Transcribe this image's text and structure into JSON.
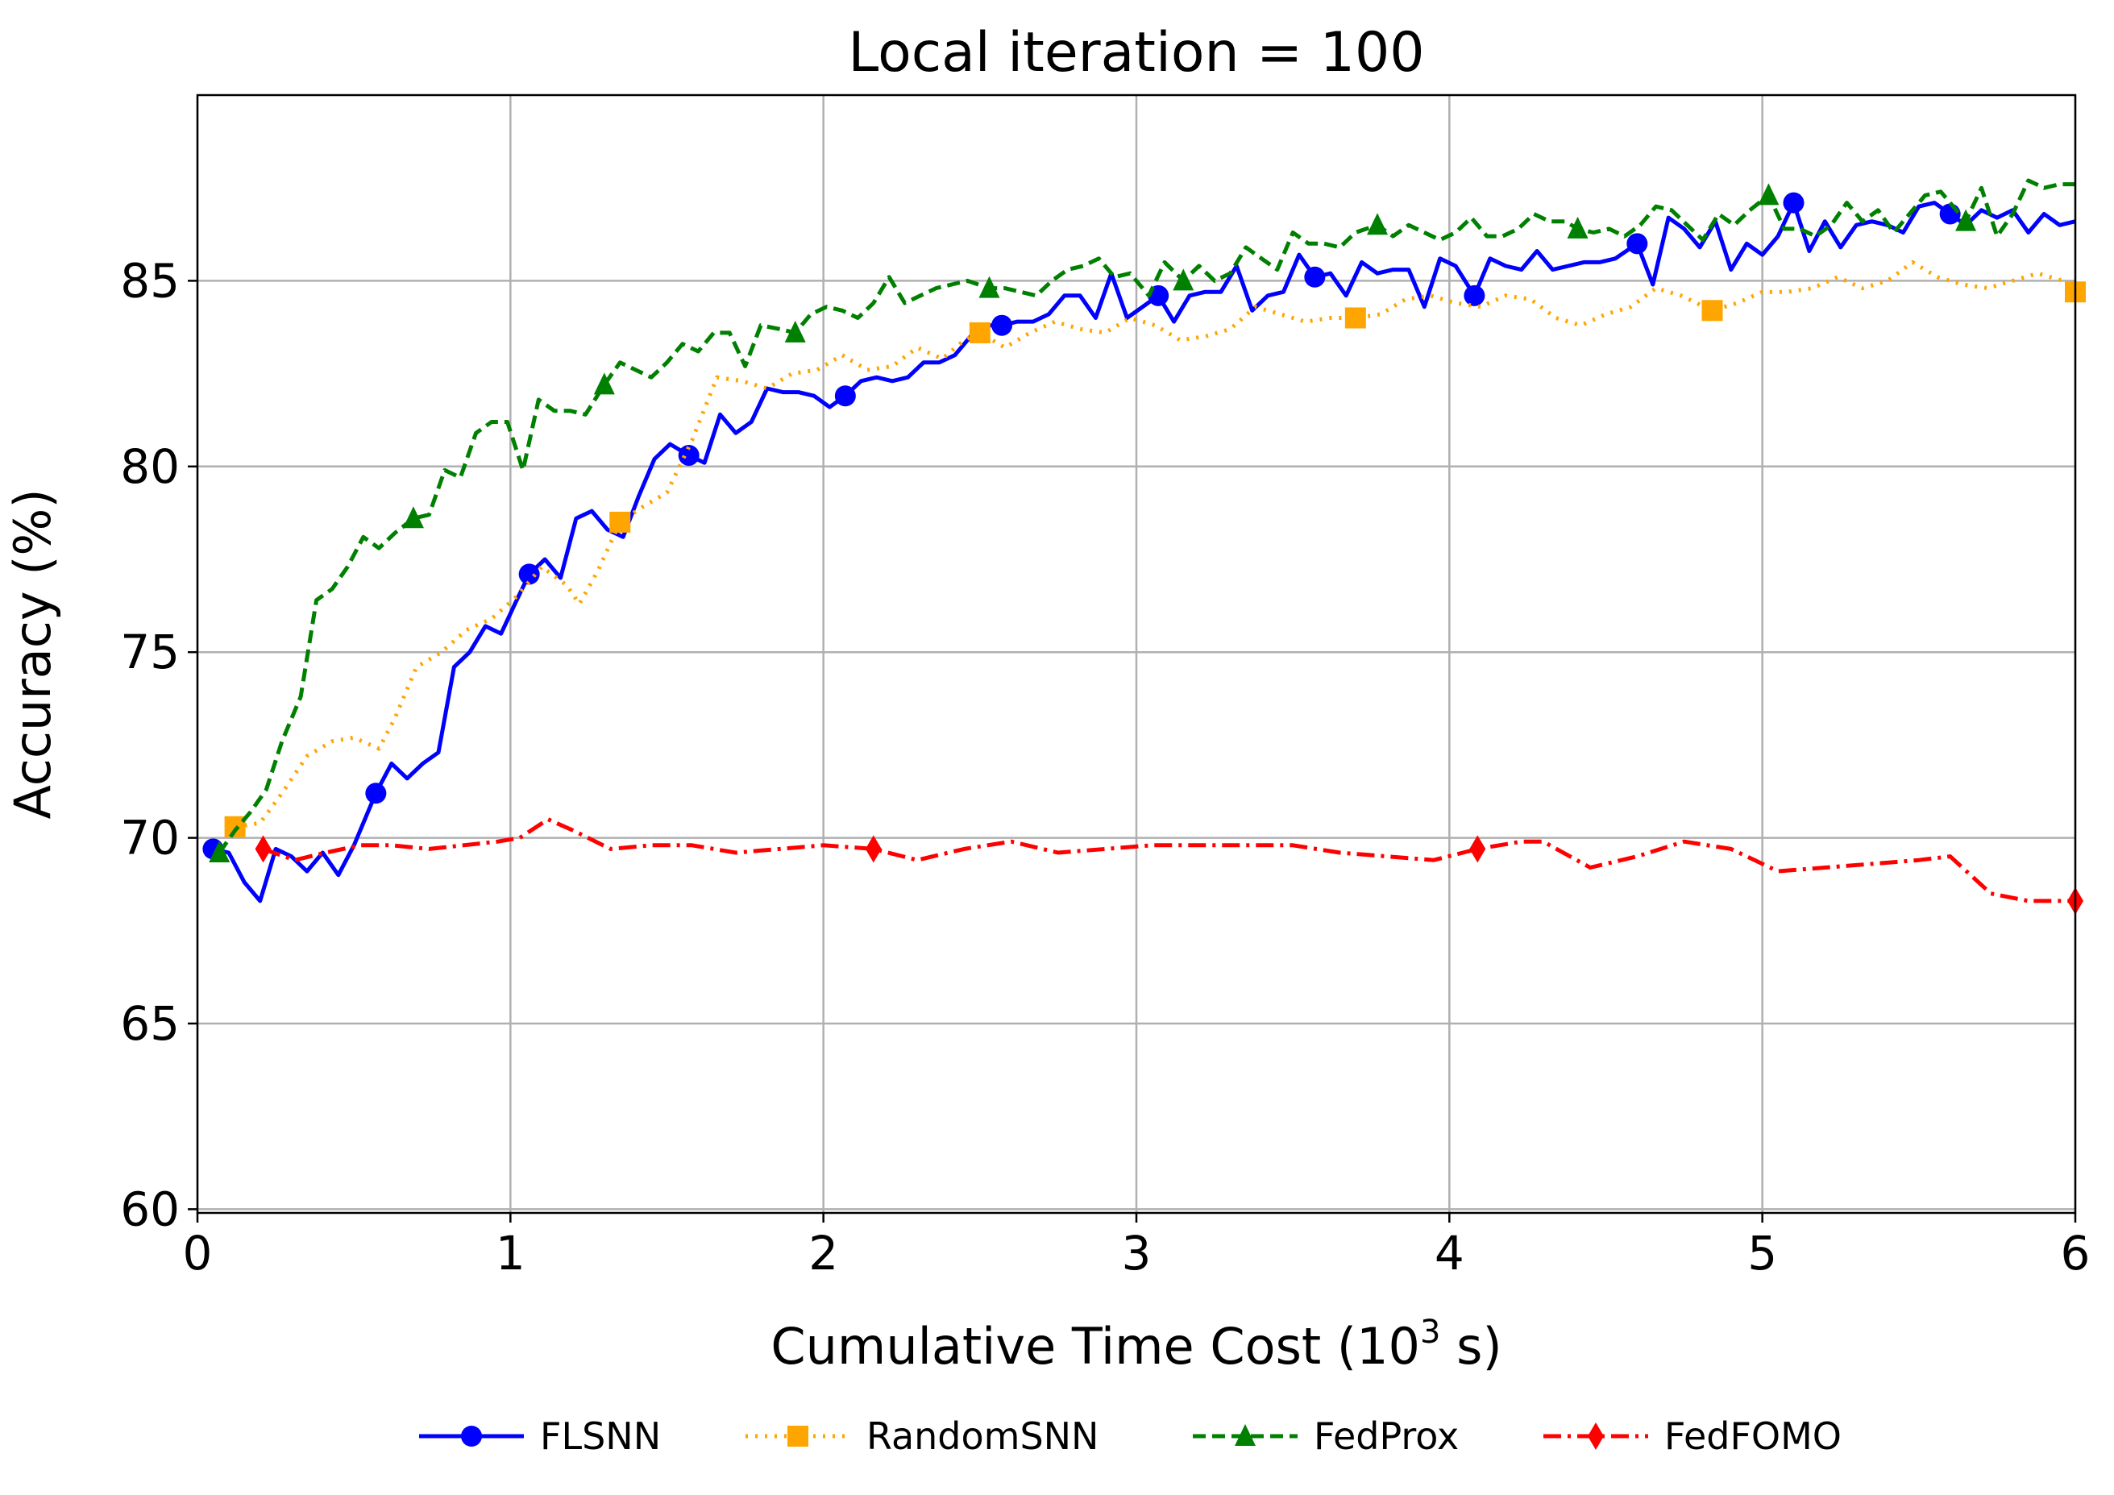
{
  "chart_data": {
    "type": "line",
    "title": "Local iteration = 100",
    "xlabel_main": "Cumulative Time Cost (10",
    "xlabel_sup": "3",
    "xlabel_tail": " s)",
    "ylabel": "Accuracy (%)",
    "xlim": [
      0,
      6
    ],
    "ylim": [
      59.9,
      90
    ],
    "xticks": [
      0,
      1,
      2,
      3,
      4,
      5,
      6
    ],
    "yticks": [
      60,
      65,
      70,
      75,
      80,
      85
    ],
    "grid": true,
    "legend_position": "bottom-center",
    "series": [
      {
        "name": "FLSNN",
        "color": "#0000ff",
        "marker": "circle",
        "dash": "solid",
        "markers_x": [
          0.05,
          0.57,
          1.06,
          1.57,
          2.07,
          2.57,
          3.07,
          3.57,
          4.08,
          4.6,
          5.1,
          5.6
        ],
        "x": [
          0.05,
          0.1,
          0.15,
          0.2,
          0.25,
          0.3,
          0.35,
          0.4,
          0.45,
          0.5,
          0.57,
          0.62,
          0.67,
          0.72,
          0.77,
          0.82,
          0.87,
          0.92,
          0.97,
          1.02,
          1.06,
          1.11,
          1.16,
          1.21,
          1.26,
          1.31,
          1.36,
          1.41,
          1.46,
          1.51,
          1.57,
          1.62,
          1.67,
          1.72,
          1.77,
          1.82,
          1.87,
          1.92,
          1.97,
          2.02,
          2.07,
          2.12,
          2.17,
          2.22,
          2.27,
          2.32,
          2.37,
          2.42,
          2.47,
          2.52,
          2.57,
          2.62,
          2.67,
          2.72,
          2.77,
          2.82,
          2.87,
          2.92,
          2.97,
          3.02,
          3.07,
          3.12,
          3.17,
          3.22,
          3.27,
          3.32,
          3.37,
          3.42,
          3.47,
          3.52,
          3.57,
          3.62,
          3.67,
          3.72,
          3.77,
          3.82,
          3.87,
          3.92,
          3.97,
          4.02,
          4.08,
          4.13,
          4.18,
          4.23,
          4.28,
          4.33,
          4.38,
          4.43,
          4.48,
          4.53,
          4.6,
          4.65,
          4.7,
          4.75,
          4.8,
          4.85,
          4.9,
          4.95,
          5.0,
          5.05,
          5.1,
          5.15,
          5.2,
          5.25,
          5.3,
          5.35,
          5.4,
          5.45,
          5.5,
          5.55,
          5.6,
          5.65,
          5.7,
          5.75,
          5.8,
          5.85,
          5.9,
          5.95,
          6.0
        ],
        "y": [
          69.7,
          69.6,
          68.8,
          68.3,
          69.7,
          69.5,
          69.1,
          69.6,
          69.0,
          69.8,
          71.2,
          72.0,
          71.6,
          72.0,
          72.3,
          74.6,
          75.0,
          75.7,
          75.5,
          76.4,
          77.1,
          77.5,
          77.0,
          78.6,
          78.8,
          78.3,
          78.1,
          79.2,
          80.2,
          80.6,
          80.3,
          80.1,
          81.4,
          80.9,
          81.2,
          82.1,
          82.0,
          82.0,
          81.9,
          81.6,
          81.9,
          82.3,
          82.4,
          82.3,
          82.4,
          82.8,
          82.8,
          83.0,
          83.5,
          83.8,
          83.8,
          83.9,
          83.9,
          84.1,
          84.6,
          84.6,
          84.0,
          85.2,
          84.0,
          84.3,
          84.6,
          83.9,
          84.6,
          84.7,
          84.7,
          85.4,
          84.2,
          84.6,
          84.7,
          85.7,
          85.1,
          85.2,
          84.6,
          85.5,
          85.2,
          85.3,
          85.3,
          84.3,
          85.6,
          85.4,
          84.6,
          85.6,
          85.4,
          85.3,
          85.8,
          85.3,
          85.4,
          85.5,
          85.5,
          85.6,
          86.0,
          84.9,
          86.7,
          86.4,
          85.9,
          86.6,
          85.3,
          86.0,
          85.7,
          86.2,
          87.1,
          85.8,
          86.6,
          85.9,
          86.5,
          86.6,
          86.5,
          86.3,
          87.0,
          87.1,
          86.8,
          86.5,
          86.9,
          86.7,
          86.9,
          86.3,
          86.8,
          86.5,
          86.6
        ]
      },
      {
        "name": "RandomSNN",
        "color": "#ffa500",
        "marker": "square",
        "dash": "dotted",
        "markers_x": [
          0.12,
          1.35,
          2.5,
          3.7,
          4.84,
          6.0
        ],
        "x": [
          0.12,
          0.2,
          0.27,
          0.35,
          0.43,
          0.5,
          0.58,
          0.63,
          0.7,
          0.78,
          0.86,
          0.94,
          1.02,
          1.1,
          1.18,
          1.22,
          1.28,
          1.35,
          1.42,
          1.5,
          1.58,
          1.66,
          1.74,
          1.82,
          1.9,
          1.98,
          2.06,
          2.14,
          2.22,
          2.3,
          2.38,
          2.45,
          2.5,
          2.58,
          2.66,
          2.74,
          2.82,
          2.9,
          2.98,
          3.06,
          3.14,
          3.22,
          3.3,
          3.38,
          3.46,
          3.54,
          3.62,
          3.7,
          3.78,
          3.86,
          3.94,
          4.02,
          4.1,
          4.18,
          4.26,
          4.34,
          4.42,
          4.5,
          4.58,
          4.66,
          4.74,
          4.84,
          4.92,
          5.0,
          5.08,
          5.16,
          5.24,
          5.32,
          5.4,
          5.48,
          5.56,
          5.64,
          5.72,
          5.8,
          5.88,
          5.96,
          6.0
        ],
        "y": [
          70.3,
          70.4,
          71.2,
          72.2,
          72.6,
          72.7,
          72.4,
          73.2,
          74.6,
          75.0,
          75.6,
          75.9,
          76.5,
          77.3,
          76.8,
          76.3,
          77.2,
          78.5,
          78.9,
          79.3,
          80.7,
          82.4,
          82.3,
          82.1,
          82.5,
          82.6,
          83.0,
          82.6,
          82.7,
          83.2,
          82.9,
          83.4,
          83.6,
          83.2,
          83.6,
          83.9,
          83.7,
          83.6,
          84.0,
          83.8,
          83.4,
          83.5,
          83.7,
          84.3,
          84.1,
          83.9,
          84.0,
          84.0,
          84.1,
          84.5,
          84.6,
          84.4,
          84.3,
          84.6,
          84.5,
          84.0,
          83.8,
          84.1,
          84.3,
          84.8,
          84.6,
          84.2,
          84.4,
          84.7,
          84.7,
          84.8,
          85.1,
          84.8,
          85.0,
          85.5,
          85.1,
          84.9,
          84.8,
          85.0,
          85.2,
          85.0,
          84.7
        ]
      },
      {
        "name": "FedProx",
        "color": "#008000",
        "marker": "triangle",
        "dash": "dashed",
        "markers_x": [
          0.07,
          0.69,
          1.3,
          1.91,
          2.53,
          3.15,
          3.77,
          4.41,
          5.02,
          5.65
        ],
        "x": [
          0.07,
          0.12,
          0.17,
          0.22,
          0.27,
          0.33,
          0.38,
          0.43,
          0.48,
          0.53,
          0.58,
          0.63,
          0.69,
          0.74,
          0.79,
          0.84,
          0.89,
          0.94,
          0.99,
          1.04,
          1.09,
          1.14,
          1.19,
          1.24,
          1.3,
          1.35,
          1.4,
          1.45,
          1.5,
          1.55,
          1.6,
          1.65,
          1.7,
          1.75,
          1.8,
          1.86,
          1.91,
          1.96,
          2.01,
          2.06,
          2.11,
          2.16,
          2.21,
          2.26,
          2.31,
          2.36,
          2.41,
          2.46,
          2.53,
          2.58,
          2.63,
          2.68,
          2.73,
          2.78,
          2.83,
          2.88,
          2.93,
          2.98,
          3.04,
          3.09,
          3.15,
          3.2,
          3.25,
          3.3,
          3.35,
          3.4,
          3.45,
          3.5,
          3.55,
          3.6,
          3.65,
          3.7,
          3.77,
          3.82,
          3.87,
          3.92,
          3.97,
          4.02,
          4.07,
          4.12,
          4.17,
          4.22,
          4.27,
          4.32,
          4.37,
          4.41,
          4.46,
          4.51,
          4.56,
          4.61,
          4.66,
          4.71,
          4.76,
          4.81,
          4.86,
          4.91,
          4.96,
          5.02,
          5.07,
          5.12,
          5.17,
          5.22,
          5.27,
          5.32,
          5.37,
          5.42,
          5.47,
          5.52,
          5.57,
          5.65,
          5.7,
          5.75,
          5.8,
          5.85,
          5.9,
          5.95,
          6.0
        ],
        "y": [
          69.6,
          70.2,
          70.7,
          71.3,
          72.6,
          73.8,
          76.4,
          76.7,
          77.3,
          78.1,
          77.8,
          78.2,
          78.6,
          78.7,
          79.9,
          79.7,
          80.9,
          81.2,
          81.2,
          79.9,
          81.8,
          81.5,
          81.5,
          81.4,
          82.2,
          82.8,
          82.6,
          82.4,
          82.8,
          83.3,
          83.1,
          83.6,
          83.6,
          82.7,
          83.8,
          83.7,
          83.6,
          84.1,
          84.3,
          84.2,
          84.0,
          84.4,
          85.1,
          84.4,
          84.6,
          84.8,
          84.9,
          85.0,
          84.8,
          84.8,
          84.7,
          84.6,
          85.0,
          85.3,
          85.4,
          85.6,
          85.1,
          85.2,
          84.6,
          85.5,
          85.0,
          85.4,
          85.0,
          85.2,
          85.9,
          85.6,
          85.3,
          86.3,
          86.0,
          86.0,
          85.9,
          86.3,
          86.5,
          86.2,
          86.5,
          86.3,
          86.1,
          86.3,
          86.7,
          86.2,
          86.2,
          86.4,
          86.8,
          86.6,
          86.6,
          86.4,
          86.3,
          86.4,
          86.2,
          86.5,
          87.0,
          86.9,
          86.5,
          86.1,
          86.8,
          86.5,
          86.9,
          87.3,
          86.4,
          86.4,
          86.2,
          86.5,
          87.1,
          86.6,
          86.9,
          86.3,
          86.8,
          87.3,
          87.4,
          86.6,
          87.5,
          86.2,
          86.8,
          87.7,
          87.5,
          87.6,
          87.6
        ]
      },
      {
        "name": "FedFOMO",
        "color": "#ff0000",
        "marker": "diamond",
        "dash": "dashdot",
        "markers_x": [
          0.21,
          2.16,
          4.09,
          6.0
        ],
        "x": [
          0.21,
          0.31,
          0.41,
          0.52,
          0.62,
          0.74,
          0.85,
          0.96,
          1.03,
          1.12,
          1.2,
          1.32,
          1.45,
          1.58,
          1.72,
          1.86,
          2.0,
          2.16,
          2.3,
          2.45,
          2.6,
          2.75,
          2.9,
          3.05,
          3.2,
          3.35,
          3.5,
          3.65,
          3.8,
          3.95,
          4.09,
          4.23,
          4.3,
          4.45,
          4.6,
          4.75,
          4.9,
          5.05,
          5.2,
          5.35,
          5.5,
          5.6,
          5.73,
          5.85,
          6.0
        ],
        "y": [
          69.7,
          69.4,
          69.6,
          69.8,
          69.8,
          69.7,
          69.8,
          69.9,
          70.0,
          70.5,
          70.2,
          69.7,
          69.8,
          69.8,
          69.6,
          69.7,
          69.8,
          69.7,
          69.4,
          69.7,
          69.9,
          69.6,
          69.7,
          69.8,
          69.8,
          69.8,
          69.8,
          69.6,
          69.5,
          69.4,
          69.7,
          69.9,
          69.9,
          69.2,
          69.5,
          69.9,
          69.7,
          69.1,
          69.2,
          69.3,
          69.4,
          69.5,
          68.5,
          68.3,
          68.3
        ]
      }
    ]
  }
}
